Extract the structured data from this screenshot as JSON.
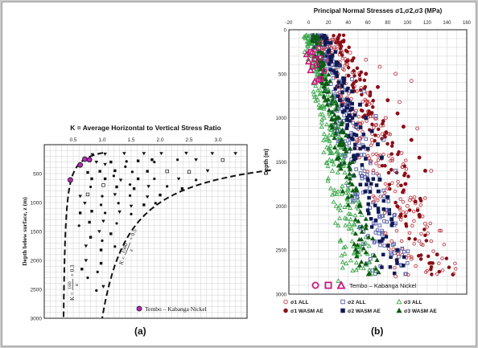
{
  "captions": {
    "a": "(a)",
    "b": "(b)"
  },
  "chart_data": [
    {
      "type": "scatter",
      "panel": "a",
      "title": "K = Average Horizontal to Vertical Stress Ratio",
      "ylabel": "Depth below surface, z (m)",
      "xlim": [
        0,
        3.5
      ],
      "ylim": [
        0,
        3000
      ],
      "y_inverted": true,
      "x_ticks": [
        "0.5",
        "1.0",
        "1.5",
        "2.0",
        "2.5",
        "3.0"
      ],
      "x_tick_values": [
        0.5,
        1.0,
        1.5,
        2.0,
        2.5,
        3.0
      ],
      "y_ticks": [
        "500",
        "1000",
        "1500",
        "2000",
        "2500",
        "3000"
      ],
      "y_tick_values": [
        500,
        1000,
        1500,
        2000,
        2500,
        3000
      ],
      "grid": true,
      "curves": [
        {
          "label_fraction": "100",
          "label_denom": "z",
          "label_prefix": "K =",
          "label_suffix": "+ 0.3",
          "formula": "100/z + 0.3"
        },
        {
          "label_fraction": "1500",
          "label_denom": "z",
          "label_prefix": "K =",
          "label_suffix": "+ 0.5",
          "formula": "1500/z + 0.5"
        }
      ],
      "legend": {
        "label": "Tembo – Kabanga Nickel",
        "position": "bottom-right"
      },
      "tembo_points": [
        {
          "x": 0.7,
          "y": 250
        },
        {
          "x": 0.78,
          "y": 260
        },
        {
          "x": 0.62,
          "y": 350
        },
        {
          "x": 0.45,
          "y": 610
        }
      ],
      "points": [
        {
          "x": 0.83,
          "y": 170,
          "m": "tri"
        },
        {
          "x": 1.05,
          "y": 160,
          "m": "tri"
        },
        {
          "x": 1.38,
          "y": 150,
          "m": "tri"
        },
        {
          "x": 1.72,
          "y": 150,
          "m": "tri"
        },
        {
          "x": 2.02,
          "y": 150,
          "m": "tri"
        },
        {
          "x": 2.45,
          "y": 145,
          "m": "tri"
        },
        {
          "x": 2.9,
          "y": 150,
          "m": "tri"
        },
        {
          "x": 3.3,
          "y": 150,
          "m": "tri"
        },
        {
          "x": 0.9,
          "y": 300,
          "m": "tri"
        },
        {
          "x": 1.15,
          "y": 300,
          "m": "sq"
        },
        {
          "x": 1.42,
          "y": 290,
          "m": "dot"
        },
        {
          "x": 1.62,
          "y": 280,
          "m": "sq"
        },
        {
          "x": 1.86,
          "y": 260,
          "m": "sq"
        },
        {
          "x": 2.3,
          "y": 260,
          "m": "dot"
        },
        {
          "x": 2.62,
          "y": 260,
          "m": "tri"
        },
        {
          "x": 3.08,
          "y": 265,
          "m": "osq"
        },
        {
          "x": 1.05,
          "y": 340,
          "m": "tri"
        },
        {
          "x": 1.9,
          "y": 300,
          "m": "dot"
        },
        {
          "x": 0.75,
          "y": 480,
          "m": "sq"
        },
        {
          "x": 0.96,
          "y": 460,
          "m": "sq"
        },
        {
          "x": 1.22,
          "y": 450,
          "m": "sq"
        },
        {
          "x": 1.52,
          "y": 470,
          "m": "dot"
        },
        {
          "x": 1.78,
          "y": 460,
          "m": "sq"
        },
        {
          "x": 2.12,
          "y": 460,
          "m": "osq"
        },
        {
          "x": 2.5,
          "y": 470,
          "m": "osq"
        },
        {
          "x": 2.82,
          "y": 450,
          "m": "tri"
        },
        {
          "x": 1.4,
          "y": 380,
          "m": "dot"
        },
        {
          "x": 0.82,
          "y": 590,
          "m": "sq"
        },
        {
          "x": 1.05,
          "y": 590,
          "m": "sq"
        },
        {
          "x": 1.32,
          "y": 610,
          "m": "tri"
        },
        {
          "x": 1.62,
          "y": 590,
          "m": "sq"
        },
        {
          "x": 1.9,
          "y": 590,
          "m": "dot"
        },
        {
          "x": 2.32,
          "y": 590,
          "m": "tri"
        },
        {
          "x": 2.62,
          "y": 610,
          "m": "dot"
        },
        {
          "x": 1.2,
          "y": 540,
          "m": "dot"
        },
        {
          "x": 0.8,
          "y": 730,
          "m": "dot"
        },
        {
          "x": 1.02,
          "y": 700,
          "m": "osq"
        },
        {
          "x": 1.25,
          "y": 730,
          "m": "sq"
        },
        {
          "x": 1.55,
          "y": 760,
          "m": "sq"
        },
        {
          "x": 1.8,
          "y": 720,
          "m": "tri"
        },
        {
          "x": 2.12,
          "y": 720,
          "m": "dot"
        },
        {
          "x": 2.38,
          "y": 760,
          "m": "sq"
        },
        {
          "x": 1.48,
          "y": 690,
          "m": "dot"
        },
        {
          "x": 0.75,
          "y": 860,
          "m": "osq"
        },
        {
          "x": 1.0,
          "y": 890,
          "m": "dot"
        },
        {
          "x": 1.22,
          "y": 860,
          "m": "tri"
        },
        {
          "x": 1.48,
          "y": 880,
          "m": "dot"
        },
        {
          "x": 1.78,
          "y": 900,
          "m": "tri"
        },
        {
          "x": 2.0,
          "y": 870,
          "m": "sq"
        },
        {
          "x": 0.62,
          "y": 890,
          "m": "tri"
        },
        {
          "x": 0.7,
          "y": 1010,
          "m": "tri"
        },
        {
          "x": 0.98,
          "y": 1040,
          "m": "dot"
        },
        {
          "x": 1.28,
          "y": 1010,
          "m": "dot"
        },
        {
          "x": 1.5,
          "y": 1060,
          "m": "tri"
        },
        {
          "x": 1.72,
          "y": 1040,
          "m": "sq"
        },
        {
          "x": 1.92,
          "y": 1010,
          "m": "dot"
        },
        {
          "x": 0.82,
          "y": 1150,
          "m": "sq"
        },
        {
          "x": 1.05,
          "y": 1180,
          "m": "dot"
        },
        {
          "x": 1.3,
          "y": 1160,
          "m": "tri"
        },
        {
          "x": 1.5,
          "y": 1200,
          "m": "dot"
        },
        {
          "x": 0.62,
          "y": 1180,
          "m": "sq"
        },
        {
          "x": 0.78,
          "y": 1340,
          "m": "sq"
        },
        {
          "x": 1.02,
          "y": 1320,
          "m": "tri"
        },
        {
          "x": 1.25,
          "y": 1360,
          "m": "dot"
        },
        {
          "x": 0.6,
          "y": 1400,
          "m": "dot"
        },
        {
          "x": 0.95,
          "y": 1500,
          "m": "tri"
        },
        {
          "x": 1.15,
          "y": 1540,
          "m": "sq"
        },
        {
          "x": 0.8,
          "y": 1600,
          "m": "sq"
        },
        {
          "x": 1.0,
          "y": 1660,
          "m": "dot"
        },
        {
          "x": 0.72,
          "y": 1750,
          "m": "tri"
        },
        {
          "x": 1.22,
          "y": 1760,
          "m": "dot"
        },
        {
          "x": 0.98,
          "y": 1820,
          "m": "sq"
        },
        {
          "x": 0.72,
          "y": 2000,
          "m": "tri"
        },
        {
          "x": 0.98,
          "y": 2050,
          "m": "sq"
        },
        {
          "x": 0.65,
          "y": 2150,
          "m": "sq"
        },
        {
          "x": 0.92,
          "y": 2200,
          "m": "dot"
        },
        {
          "x": 0.75,
          "y": 2300,
          "m": "dot"
        },
        {
          "x": 1.02,
          "y": 2450,
          "m": "tri"
        },
        {
          "x": 0.9,
          "y": 2520,
          "m": "dot"
        }
      ]
    },
    {
      "type": "scatter",
      "panel": "b",
      "title": "Principal Normal Stresses σ1,σ2,σ3 (MPa)",
      "ylabel": "Depth (m)",
      "xlim": [
        -20,
        160
      ],
      "ylim": [
        0,
        3000
      ],
      "y_inverted": true,
      "x_ticks": [
        "-20",
        "0",
        "20",
        "40",
        "60",
        "80",
        "100",
        "120",
        "140",
        "160"
      ],
      "x_tick_values": [
        -20,
        0,
        20,
        40,
        60,
        80,
        100,
        120,
        140,
        160
      ],
      "y_ticks": [
        "0",
        "500",
        "1000",
        "1500",
        "2000",
        "2500",
        "3000"
      ],
      "y_tick_values": [
        0,
        500,
        1000,
        1500,
        2000,
        2500,
        3000
      ],
      "grid": true,
      "series": [
        {
          "name": "σ1 ALL",
          "symbol": "open-circle",
          "color": "#c0404a",
          "values": [
            [
              12,
              150
            ],
            [
              26,
              200
            ],
            [
              42,
              260
            ],
            [
              58,
              340
            ],
            [
              72,
              420
            ],
            [
              88,
              500
            ],
            [
              104,
              580
            ],
            [
              30,
              650
            ],
            [
              60,
              720
            ],
            [
              92,
              820
            ],
            [
              48,
              920
            ],
            [
              78,
              1000
            ],
            [
              110,
              1120
            ],
            [
              64,
              1250
            ],
            [
              94,
              1400
            ],
            [
              124,
              1600
            ],
            [
              80,
              1800
            ],
            [
              100,
              2000
            ],
            [
              118,
              2200
            ],
            [
              84,
              2400
            ],
            [
              104,
              2600
            ],
            [
              88,
              2800
            ]
          ]
        },
        {
          "name": "σ2 ALL",
          "symbol": "open-square",
          "color": "#5560aa",
          "values": [
            [
              6,
              200
            ],
            [
              18,
              300
            ],
            [
              30,
              420
            ],
            [
              44,
              560
            ],
            [
              56,
              700
            ],
            [
              40,
              850
            ],
            [
              68,
              980
            ],
            [
              48,
              1100
            ],
            [
              76,
              1250
            ],
            [
              56,
              1420
            ],
            [
              88,
              1600
            ],
            [
              62,
              1800
            ],
            [
              80,
              2050
            ],
            [
              68,
              2300
            ],
            [
              84,
              2550
            ]
          ]
        },
        {
          "name": "σ3 ALL",
          "symbol": "open-triangle",
          "color": "#3aa84a",
          "values": [
            [
              -4,
              250
            ],
            [
              4,
              380
            ],
            [
              10,
              520
            ],
            [
              18,
              680
            ],
            [
              26,
              820
            ],
            [
              14,
              960
            ],
            [
              30,
              1100
            ],
            [
              20,
              1250
            ],
            [
              34,
              1420
            ],
            [
              24,
              1600
            ],
            [
              40,
              1800
            ],
            [
              28,
              2000
            ],
            [
              46,
              2200
            ],
            [
              32,
              2400
            ],
            [
              38,
              2650
            ],
            [
              30,
              2850
            ]
          ]
        },
        {
          "name": "σ1 WASM AE",
          "symbol": "filled-circle",
          "color": "#8a0f18",
          "values": [
            [
              44,
              350
            ],
            [
              58,
              500
            ],
            [
              70,
              650
            ],
            [
              80,
              800
            ],
            [
              90,
              950
            ],
            [
              96,
              1100
            ],
            [
              104,
              1250
            ],
            [
              112,
              1450
            ],
            [
              118,
              1600
            ],
            [
              98,
              1750
            ],
            [
              108,
              1950
            ],
            [
              112,
              2100
            ],
            [
              130,
              2550
            ]
          ]
        },
        {
          "name": "σ2 WASM AE",
          "symbol": "filled-square",
          "color": "#101a55",
          "values": [
            [
              20,
              250
            ],
            [
              28,
              400
            ],
            [
              36,
              560
            ],
            [
              44,
              700
            ],
            [
              52,
              850
            ],
            [
              58,
              1000
            ],
            [
              64,
              1150
            ],
            [
              70,
              1300
            ],
            [
              74,
              1450
            ],
            [
              72,
              1700
            ],
            [
              80,
              1900
            ],
            [
              84,
              2150
            ],
            [
              90,
              2500
            ]
          ]
        },
        {
          "name": "σ3 WASM AE",
          "symbol": "filled-triangle",
          "color": "#0e5a16",
          "values": [
            [
              6,
              300
            ],
            [
              12,
              450
            ],
            [
              18,
              600
            ],
            [
              24,
              750
            ],
            [
              28,
              900
            ],
            [
              34,
              1050
            ],
            [
              38,
              1200
            ],
            [
              42,
              1350
            ],
            [
              44,
              1500
            ],
            [
              46,
              1650
            ],
            [
              48,
              1800
            ],
            [
              52,
              2000
            ],
            [
              58,
              2250
            ]
          ]
        }
      ],
      "tembo_points": [
        {
          "symbol": "open-circle",
          "values": [
            [
              10,
              210
            ],
            [
              4,
              260
            ],
            [
              12,
              320
            ],
            [
              8,
              400
            ],
            [
              16,
              470
            ],
            [
              10,
              570
            ]
          ]
        },
        {
          "symbol": "open-square",
          "values": [
            [
              2,
              250
            ],
            [
              6,
              330
            ],
            [
              4,
              420
            ],
            [
              12,
              560
            ]
          ]
        },
        {
          "symbol": "open-triangle",
          "values": [
            [
              -2,
              280
            ],
            [
              0,
              360
            ],
            [
              2,
              460
            ],
            [
              6,
              590
            ]
          ]
        }
      ],
      "tembo_label": "Tembo – Kabanga Nickel",
      "legend": {
        "position": "bottom",
        "rows": [
          [
            {
              "symbol": "open-circle",
              "color": "#c0404a",
              "text": "σ1 ALL"
            },
            {
              "symbol": "open-square",
              "color": "#5560aa",
              "text": "σ2 ALL"
            },
            {
              "symbol": "open-triangle",
              "color": "#3aa84a",
              "text": "σ3 ALL"
            }
          ],
          [
            {
              "symbol": "filled-circle",
              "color": "#8a0f18",
              "text": "σ1 WASM AE"
            },
            {
              "symbol": "filled-square",
              "color": "#101a55",
              "text": "σ2 WASM AE"
            },
            {
              "symbol": "filled-triangle",
              "color": "#0e5a16",
              "text": "σ3 WASM AE"
            }
          ]
        ]
      }
    }
  ]
}
